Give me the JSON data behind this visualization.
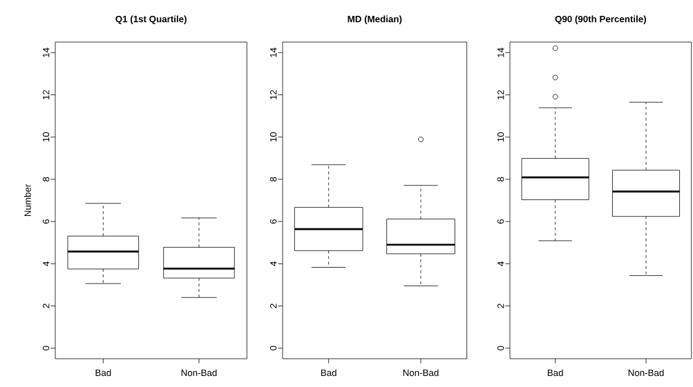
{
  "chart_data": [
    {
      "type": "box",
      "title": "Q1 (1st Quartile)",
      "ylabel": "Number",
      "categories": [
        "Bad",
        "Non-Bad"
      ],
      "ylim": [
        -0.5,
        14.5
      ],
      "yticks": [
        0,
        2,
        4,
        6,
        8,
        10,
        12,
        14
      ],
      "boxes": [
        {
          "low": 3.06,
          "q1": 3.75,
          "median": 4.58,
          "q3": 5.31,
          "high": 6.86
        },
        {
          "low": 2.4,
          "q1": 3.32,
          "median": 3.77,
          "q3": 4.78,
          "high": 6.17
        }
      ]
    },
    {
      "type": "box",
      "title": "MD (Median)",
      "categories": [
        "Bad",
        "Non-Bad"
      ],
      "ylim": [
        -0.5,
        14.5
      ],
      "yticks": [
        0,
        2,
        4,
        6,
        8,
        10,
        12,
        14
      ],
      "boxes": [
        {
          "low": 3.83,
          "q1": 4.62,
          "median": 5.64,
          "q3": 6.67,
          "high": 8.69
        },
        {
          "low": 2.95,
          "q1": 4.47,
          "median": 4.9,
          "q3": 6.12,
          "high": 7.71,
          "outliers": [
            9.89
          ]
        }
      ]
    },
    {
      "type": "box",
      "title": "Q90 (90th Percentile)",
      "categories": [
        "Bad",
        "Non-Bad"
      ],
      "ylim": [
        -0.5,
        14.5
      ],
      "yticks": [
        0,
        2,
        4,
        6,
        8,
        10,
        12,
        14
      ],
      "boxes": [
        {
          "low": 5.09,
          "q1": 7.03,
          "median": 8.09,
          "q3": 8.99,
          "high": 11.39,
          "outliers": [
            11.91,
            12.82,
            14.21
          ]
        },
        {
          "low": 3.44,
          "q1": 6.24,
          "median": 7.42,
          "q3": 8.43,
          "high": 11.65
        }
      ]
    }
  ]
}
